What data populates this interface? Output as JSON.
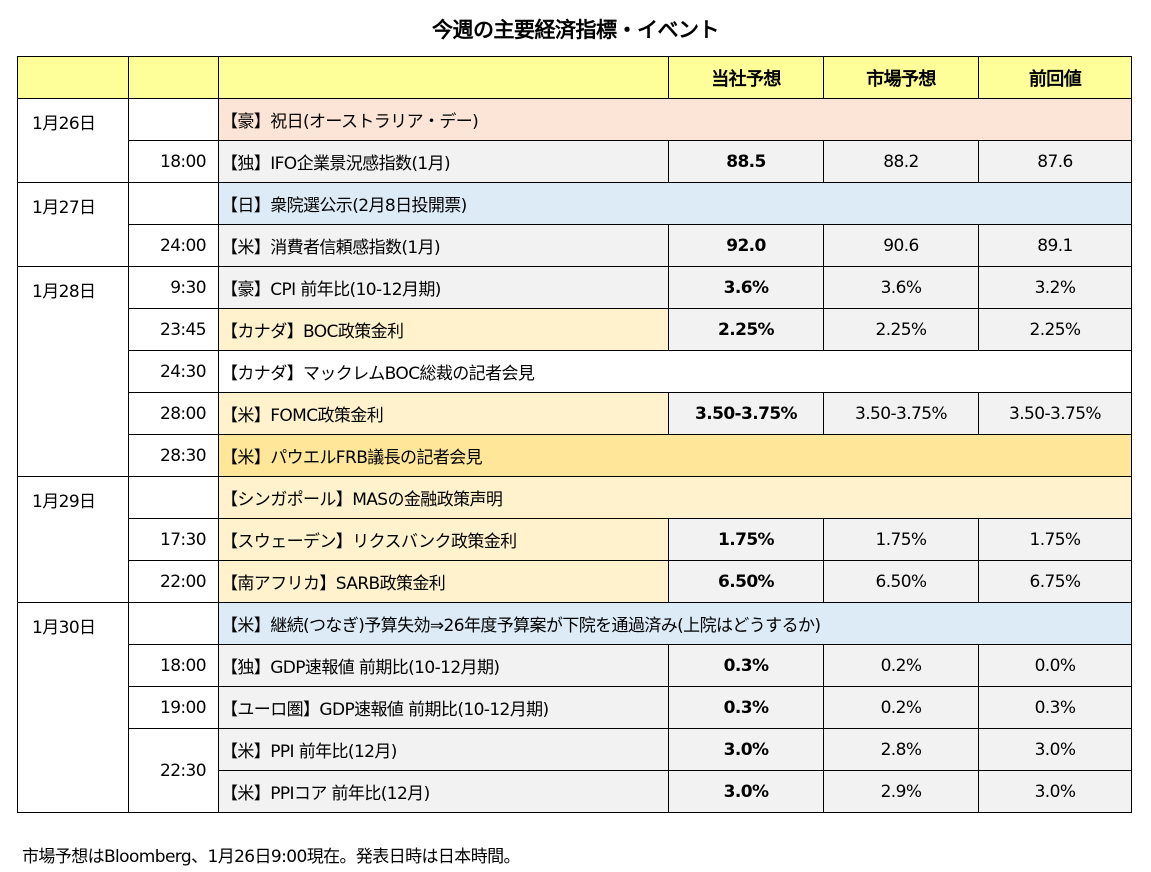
{
  "title": "今週の主要経済指標・イベント",
  "header": {
    "col_date": "",
    "col_time": "",
    "col_event": "",
    "col_own": "当社予想",
    "col_market": "市場予想",
    "col_prev": "前回値"
  },
  "colors": {
    "header": "#FFFF99",
    "pink": "#FCE4D6",
    "blue": "#DDEBF7",
    "grey": "#F2F2F2",
    "light_yellow": "#FFF2CC",
    "orange": "#FFE699",
    "white": "#FFFFFF"
  },
  "groups": [
    {
      "date": "1月26日",
      "rows": [
        {
          "time": "",
          "event": "【豪】祝日(オーストラリア・デー)",
          "bg": "pink",
          "span": true
        },
        {
          "time": "18:00",
          "event": "【独】IFO企業景況感指数(1月)",
          "bg": "grey",
          "own": "88.5",
          "market": "88.2",
          "prev": "87.6"
        }
      ]
    },
    {
      "date": "1月27日",
      "rows": [
        {
          "time": "",
          "event": "【日】衆院選公示(2月8日投開票)",
          "bg": "blue",
          "span": true
        },
        {
          "time": "24:00",
          "event": "【米】消費者信頼感指数(1月)",
          "bg": "grey",
          "own": "92.0",
          "market": "90.6",
          "prev": "89.1"
        }
      ]
    },
    {
      "date": "1月28日",
      "rows": [
        {
          "time": "9:30",
          "event": "【豪】CPI 前年比(10-12月期)",
          "bg": "grey",
          "own": "3.6%",
          "market": "3.6%",
          "prev": "3.2%"
        },
        {
          "time": "23:45",
          "event": "【カナダ】BOC政策金利",
          "bg": "light_yellow",
          "own": "2.25%",
          "market": "2.25%",
          "prev": "2.25%"
        },
        {
          "time": "24:30",
          "event": "【カナダ】マックレムBOC総裁の記者会見",
          "bg": "white",
          "span": true
        },
        {
          "time": "28:00",
          "event": "【米】FOMC政策金利",
          "bg": "light_yellow",
          "own": "3.50-3.75%",
          "market": "3.50-3.75%",
          "prev": "3.50-3.75%"
        },
        {
          "time": "28:30",
          "event": "【米】パウエルFRB議長の記者会見",
          "bg": "orange",
          "span": true
        }
      ]
    },
    {
      "date": "1月29日",
      "rows": [
        {
          "time": "",
          "event": "【シンガポール】MASの金融政策声明",
          "bg": "light_yellow",
          "span": true
        },
        {
          "time": "17:30",
          "event": "【スウェーデン】リクスバンク政策金利",
          "bg": "light_yellow",
          "own": "1.75%",
          "market": "1.75%",
          "prev": "1.75%"
        },
        {
          "time": "22:00",
          "event": "【南アフリカ】SARB政策金利",
          "bg": "light_yellow",
          "own": "6.50%",
          "market": "6.50%",
          "prev": "6.75%"
        }
      ]
    },
    {
      "date": "1月30日",
      "rows": [
        {
          "time": "",
          "event": "【米】継続(つなぎ)予算失効⇒26年度予算案が下院を通過済み(上院はどうするか)",
          "bg": "blue",
          "span": true
        },
        {
          "time": "18:00",
          "event": "【独】GDP速報値 前期比(10-12月期)",
          "bg": "grey",
          "own": "0.3%",
          "market": "0.2%",
          "prev": "0.0%"
        },
        {
          "time": "19:00",
          "event": "【ユーロ圏】GDP速報値 前期比(10-12月期)",
          "bg": "grey",
          "own": "0.3%",
          "market": "0.2%",
          "prev": "0.3%"
        },
        {
          "time": "22:30",
          "event": "【米】PPI 前年比(12月)",
          "bg": "grey",
          "own": "3.0%",
          "market": "2.8%",
          "prev": "3.0%",
          "time_rowspan": 2
        },
        {
          "time": null,
          "event": "【米】PPIコア 前年比(12月)",
          "bg": "grey",
          "own": "3.0%",
          "market": "2.9%",
          "prev": "3.0%"
        }
      ]
    }
  ],
  "footnote": "市場予想はBloomberg、1月26日9:00現在。発表日時は日本時間。"
}
